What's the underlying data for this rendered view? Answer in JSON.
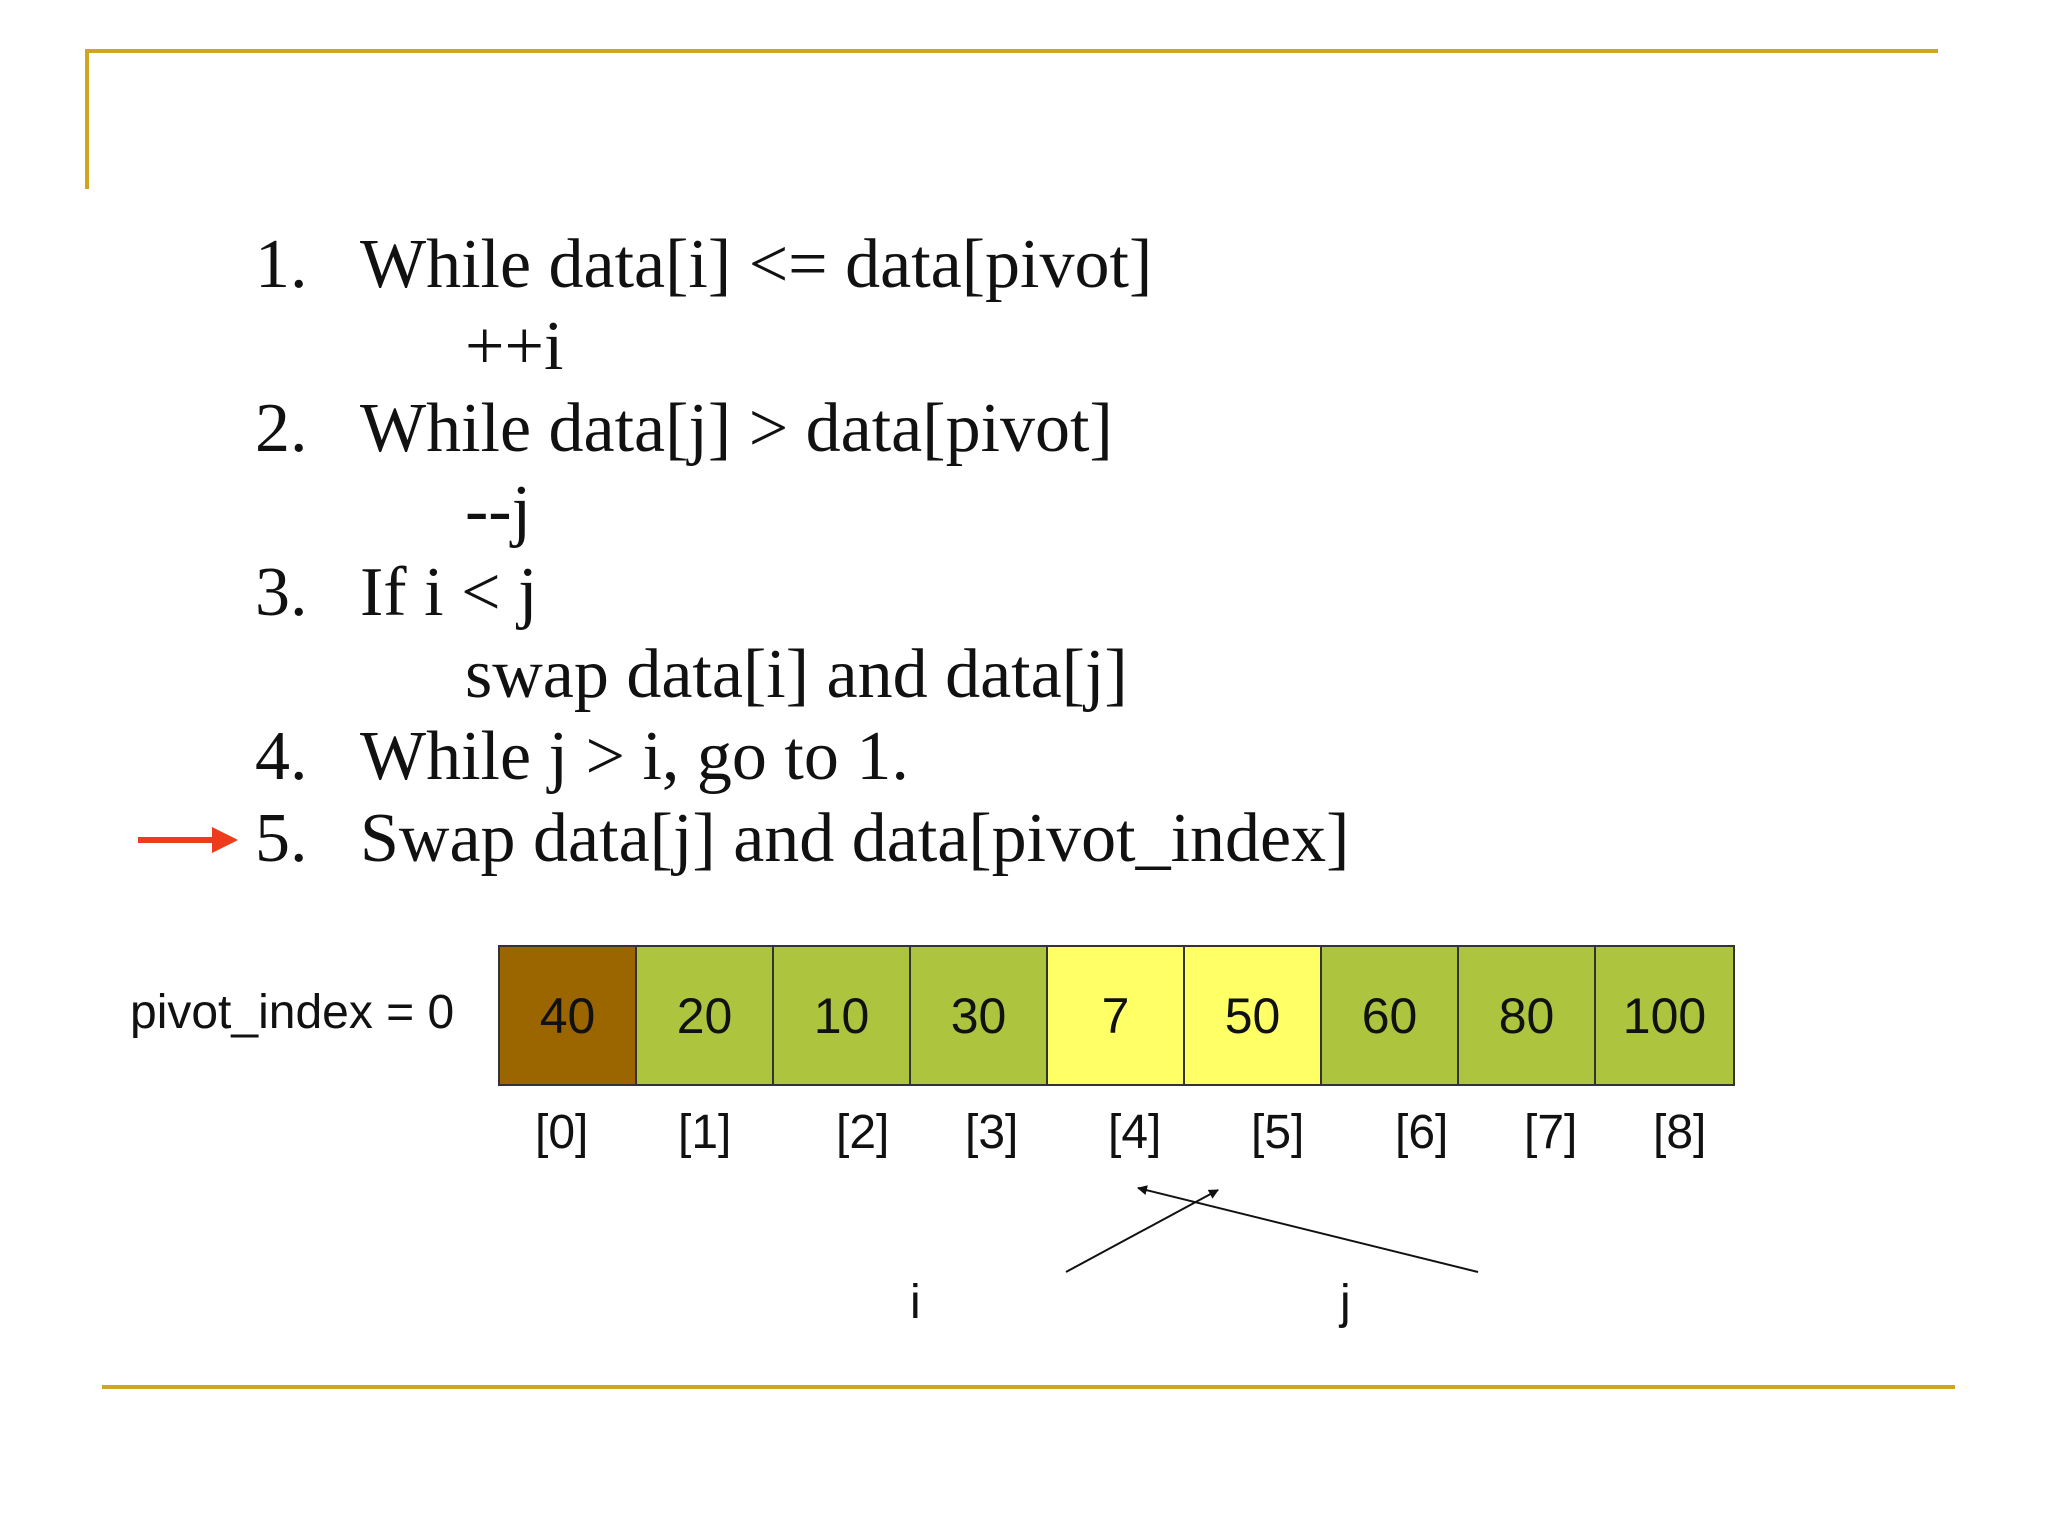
{
  "steps": [
    {
      "num": "1.",
      "text": "While data[i] <= data[pivot]",
      "sub": "++i"
    },
    {
      "num": "2.",
      "text": "While data[j] > data[pivot]",
      "sub": "--j"
    },
    {
      "num": "3.",
      "text": "If i < j",
      "sub": "swap data[i] and data[j]"
    },
    {
      "num": "4.",
      "text": "While j > i, go to 1."
    },
    {
      "num": "5.",
      "text": "Swap data[j] and data[pivot_index]"
    }
  ],
  "current_step": 5,
  "pivot_label": "pivot_index = 0",
  "array": {
    "values": [
      "40",
      "20",
      "10",
      "30",
      "7",
      "50",
      "60",
      "80",
      "100"
    ],
    "indices": [
      "[0]",
      "[1]",
      "[2]",
      "[3]",
      "[4]",
      "[5]",
      "[6]",
      "[7]",
      "[8]"
    ],
    "colors": [
      "#9b6500",
      "#adc43f",
      "#adc43f",
      "#adc43f",
      "#ffff66",
      "#ffff66",
      "#adc43f",
      "#adc43f",
      "#adc43f"
    ]
  },
  "pointers": {
    "i": "i",
    "j": "j"
  },
  "colors": {
    "accent_gold": "#d2a520",
    "arrow_red": "#ee3b1c"
  }
}
